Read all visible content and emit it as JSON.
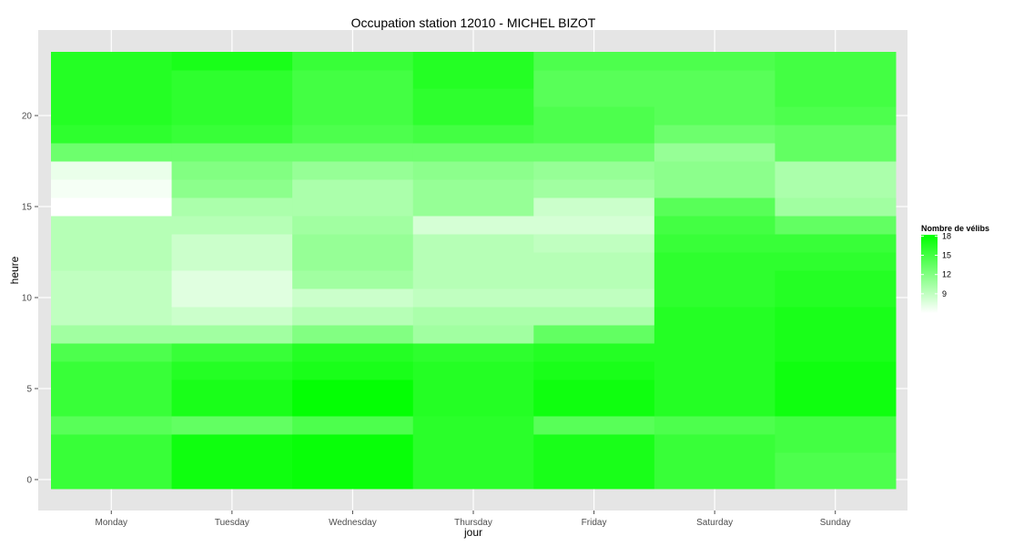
{
  "chart_data": {
    "type": "heatmap",
    "title": "Occupation station 12010 - MICHEL BIZOT",
    "xlabel": "jour",
    "ylabel": "heure",
    "x_categories": [
      "Monday",
      "Tuesday",
      "Wednesday",
      "Thursday",
      "Friday",
      "Saturday",
      "Sunday"
    ],
    "y_values": [
      0,
      1,
      2,
      3,
      4,
      5,
      6,
      7,
      8,
      9,
      10,
      11,
      12,
      13,
      14,
      15,
      16,
      17,
      18,
      19,
      20,
      21,
      22,
      23
    ],
    "y_ticks": [
      0,
      5,
      10,
      15,
      20
    ],
    "y_range": [
      -0.5,
      23.5
    ],
    "values": [
      [
        15.5,
        17.5,
        17.8,
        16.2,
        17.0,
        15.5,
        14.5
      ],
      [
        15.5,
        17.5,
        17.8,
        16.2,
        17.0,
        15.5,
        14.5
      ],
      [
        15.5,
        17.5,
        17.8,
        16.2,
        17.0,
        15.5,
        15.0
      ],
      [
        14.0,
        13.5,
        14.5,
        16.2,
        14.0,
        14.5,
        15.0
      ],
      [
        15.5,
        17.0,
        18.0,
        16.5,
        17.5,
        16.5,
        17.5
      ],
      [
        15.5,
        17.0,
        18.0,
        16.5,
        17.5,
        16.5,
        17.5
      ],
      [
        15.5,
        16.5,
        17.0,
        16.5,
        17.0,
        16.5,
        17.5
      ],
      [
        14.5,
        15.5,
        16.5,
        16.0,
        16.5,
        16.5,
        17.0
      ],
      [
        10.5,
        10.5,
        12.0,
        10.5,
        13.5,
        16.5,
        17.0
      ],
      [
        9.0,
        8.5,
        9.5,
        10.0,
        10.0,
        16.5,
        17.0
      ],
      [
        9.0,
        7.5,
        8.5,
        9.0,
        9.0,
        16.0,
        16.5
      ],
      [
        9.0,
        7.5,
        10.5,
        9.5,
        9.5,
        16.0,
        16.5
      ],
      [
        9.5,
        8.5,
        11.0,
        9.5,
        9.5,
        16.0,
        16.0
      ],
      [
        9.5,
        8.5,
        11.0,
        9.5,
        9.0,
        15.5,
        15.5
      ],
      [
        9.5,
        9.5,
        10.5,
        8.0,
        8.0,
        15.0,
        13.5
      ],
      [
        6.0,
        10.0,
        10.0,
        11.0,
        8.5,
        14.0,
        10.5
      ],
      [
        6.5,
        11.5,
        10.0,
        11.0,
        10.5,
        11.5,
        10.0
      ],
      [
        7.0,
        12.0,
        11.0,
        11.5,
        11.0,
        11.5,
        10.0
      ],
      [
        13.0,
        13.0,
        13.0,
        13.0,
        13.0,
        11.0,
        13.5
      ],
      [
        16.0,
        15.5,
        14.5,
        15.0,
        14.5,
        13.0,
        13.5
      ],
      [
        16.5,
        16.0,
        15.0,
        16.0,
        14.5,
        14.0,
        14.5
      ],
      [
        16.5,
        16.0,
        15.0,
        16.0,
        14.0,
        14.0,
        15.0
      ],
      [
        16.5,
        16.0,
        15.0,
        16.5,
        14.0,
        14.0,
        15.0
      ],
      [
        16.5,
        17.0,
        15.5,
        16.5,
        14.5,
        14.5,
        15.0
      ]
    ],
    "legend": {
      "title": "Nombre de vélibs",
      "ticks": [
        9,
        12,
        15,
        18
      ],
      "range": [
        6,
        18.2
      ],
      "low_color": "#ffffff",
      "high_color": "#00ff00"
    },
    "panel_background": "#e5e5e5",
    "grid_color": "#ffffff"
  }
}
